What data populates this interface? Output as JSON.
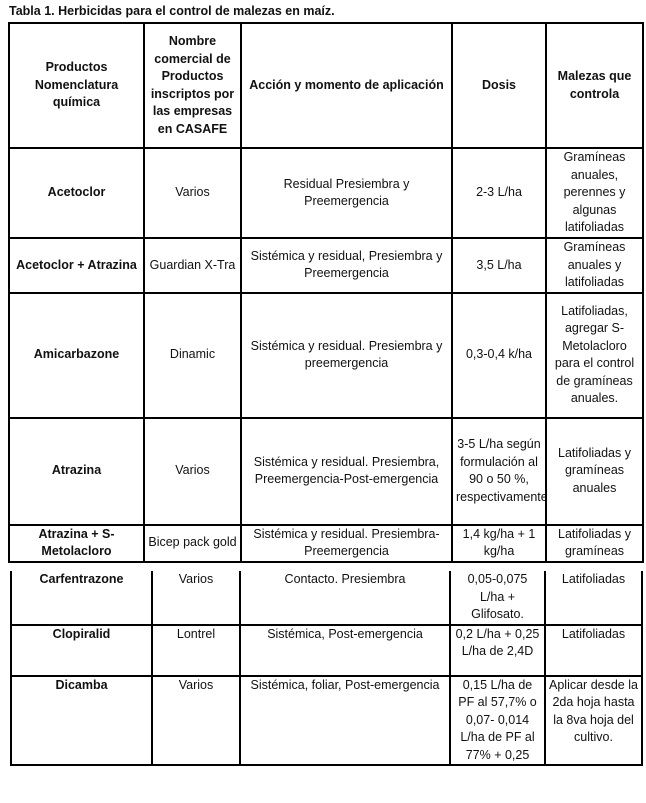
{
  "title": "Tabla 1. Herbicidas para el control de malezas en maíz.",
  "headers": [
    "Productos Nomenclatura química",
    "Nombre comercial de Productos inscriptos por las empresas en CASAFE",
    "Acción y momento de aplicación",
    "Dosis",
    "Malezas que controla"
  ],
  "rows": [
    {
      "producto": "Acetoclor",
      "nombre": "Varios",
      "accion": "Residual Presiembra y Preemergencia",
      "dosis": "2-3 L/ha",
      "malezas": "Gramíneas anuales, perennes y algunas latifoliadas"
    },
    {
      "producto": "Acetoclor + Atrazina",
      "nombre": "Guardian X-Tra",
      "accion": "Sistémica y residual, Presiembra y Preemergencia",
      "dosis": "3,5 L/ha",
      "malezas": "Gramíneas anuales y latifoliadas"
    },
    {
      "producto": "Amicarbazone",
      "nombre": "Dinamic",
      "accion": "Sistémica y residual. Presiembra y preemergencia",
      "dosis": "0,3-0,4 k/ha",
      "malezas": "Latifoliadas, agregar S-Metolacloro para el control de gramíneas anuales."
    },
    {
      "producto": "Atrazina",
      "nombre": "Varios",
      "accion": "Sistémica y residual. Presiembra, Preemergencia-Post-emergencia",
      "dosis": "3-5 L/ha según formulación al 90 o 50 %, respectivamente",
      "malezas": "Latifoliadas y gramíneas anuales"
    },
    {
      "producto": "Atrazina + S-Metolacloro",
      "nombre": "Bicep pack gold",
      "accion": "Sistémica y residual. Presiembra-Preemergencia",
      "dosis": "1,4 kg/ha + 1 kg/ha",
      "malezas": "Latifoliadas y gramíneas"
    }
  ],
  "rows2": [
    {
      "producto": "Carfentrazone",
      "nombre": "Varios",
      "accion": "Contacto. Presiembra",
      "dosis": "0,05-0,075 L/ha + Glifosato.",
      "malezas": "Latifoliadas"
    },
    {
      "producto": "Clopiralid",
      "nombre": "Lontrel",
      "accion": "Sistémica, Post-emergencia",
      "dosis": "0,2 L/ha + 0,25 L/ha de 2,4D",
      "malezas": "Latifoliadas"
    },
    {
      "producto": "Dicamba",
      "nombre": "Varios",
      "accion": "Sistémica, foliar, Post-emergencia",
      "dosis": "0,15 L/ha de PF al 57,7% o 0,07- 0,014 L/ha de PF al 77% + 0,25",
      "malezas": "Aplicar desde la 2da hoja hasta la 8va hoja del cultivo."
    }
  ]
}
